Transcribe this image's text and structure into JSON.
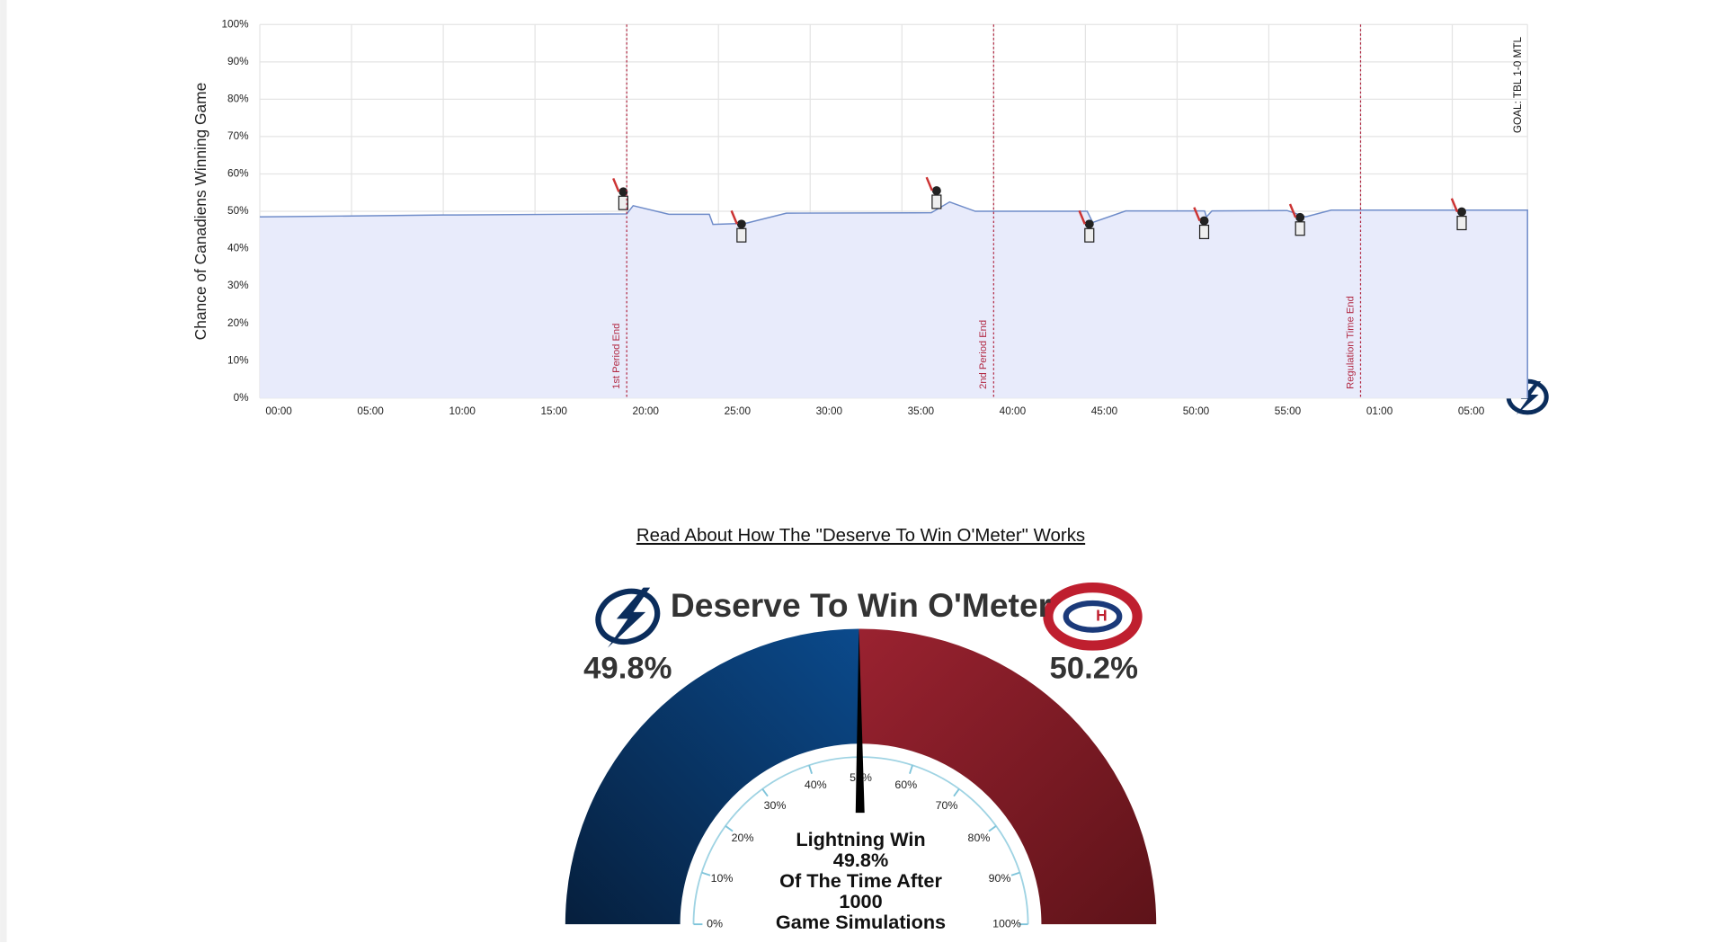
{
  "link_text": "Read About How The \"Deserve To Win O'Meter\" Works",
  "chart_data": [
    {
      "type": "area",
      "y_label": "Chance of Canadiens Winning Game",
      "x": [
        0,
        10.0,
        20.0,
        20.35,
        22.3,
        24.5,
        24.7,
        26.5,
        28.7,
        36.6,
        37.6,
        39.0,
        45.1,
        45.4,
        47.2,
        51.5,
        51.6,
        51.9,
        56.0,
        57.0,
        58.4,
        69.1
      ],
      "values": [
        48.5,
        49.0,
        49.3,
        51.5,
        49.2,
        49.2,
        46.5,
        46.8,
        49.5,
        49.6,
        52.5,
        50.0,
        50.0,
        47.0,
        50.1,
        50.1,
        48.5,
        50.1,
        50.2,
        48.5,
        50.3,
        50.3
      ],
      "color": "#6f8cc9",
      "fill": "#e8ebfb",
      "grid": true,
      "xlim": [
        0,
        69.1
      ],
      "ylim": [
        0,
        100
      ],
      "xticks": [
        {
          "value": 0,
          "label": "00:00"
        },
        {
          "value": 5,
          "label": "05:00"
        },
        {
          "value": 10,
          "label": "10:00"
        },
        {
          "value": 15,
          "label": "15:00"
        },
        {
          "value": 20,
          "label": "20:00"
        },
        {
          "value": 25,
          "label": "25:00"
        },
        {
          "value": 30,
          "label": "30:00"
        },
        {
          "value": 35,
          "label": "35:00"
        },
        {
          "value": 40,
          "label": "40:00"
        },
        {
          "value": 45,
          "label": "45:00"
        },
        {
          "value": 50,
          "label": "50:00"
        },
        {
          "value": 55,
          "label": "55:00"
        },
        {
          "value": 60,
          "label": "01:00"
        },
        {
          "value": 65,
          "label": "05:00"
        }
      ],
      "yticks": [
        {
          "value": 0,
          "label": "0%"
        },
        {
          "value": 10,
          "label": "10%"
        },
        {
          "value": 20,
          "label": "20%"
        },
        {
          "value": 30,
          "label": "30%"
        },
        {
          "value": 40,
          "label": "40%"
        },
        {
          "value": 50,
          "label": "50%"
        },
        {
          "value": 60,
          "label": "60%"
        },
        {
          "value": 70,
          "label": "70%"
        },
        {
          "value": 80,
          "label": "80%"
        },
        {
          "value": 90,
          "label": "90%"
        },
        {
          "value": 100,
          "label": "100%"
        }
      ],
      "annotation_color": "#b22a44",
      "annotations": [
        {
          "x": 20,
          "label": "1st Period End"
        },
        {
          "x": 40,
          "label": "2nd Period End"
        },
        {
          "x": 60,
          "label": "Regulation Time End"
        }
      ],
      "goal_annotations": [
        {
          "x": 68.6,
          "label": "GOAL: TBL 1-0 MTL"
        }
      ]
    },
    {
      "type": "gauge",
      "title": "Deserve To Win O'Meter",
      "values": [
        49.8,
        50.2
      ],
      "value_labels": [
        "49.8%",
        "50.2%"
      ],
      "colors": [
        "#0a2f5c",
        "#8e1d2a"
      ],
      "lim": [
        0,
        100
      ],
      "ticks": [
        {
          "value": 0,
          "label": "0%"
        },
        {
          "value": 10,
          "label": "10%"
        },
        {
          "value": 20,
          "label": "20%"
        },
        {
          "value": 30,
          "label": "30%"
        },
        {
          "value": 40,
          "label": "40%"
        },
        {
          "value": 50,
          "label": "50%"
        },
        {
          "value": 60,
          "label": "60%"
        },
        {
          "value": 70,
          "label": "70%"
        },
        {
          "value": 80,
          "label": "80%"
        },
        {
          "value": 90,
          "label": "90%"
        },
        {
          "value": 100,
          "label": "100%"
        }
      ],
      "center_text_before": "Lightning Win",
      "center_text_middle": "Of The Time After",
      "simulations": 1000,
      "center_text_after": "Game Simulations"
    }
  ]
}
